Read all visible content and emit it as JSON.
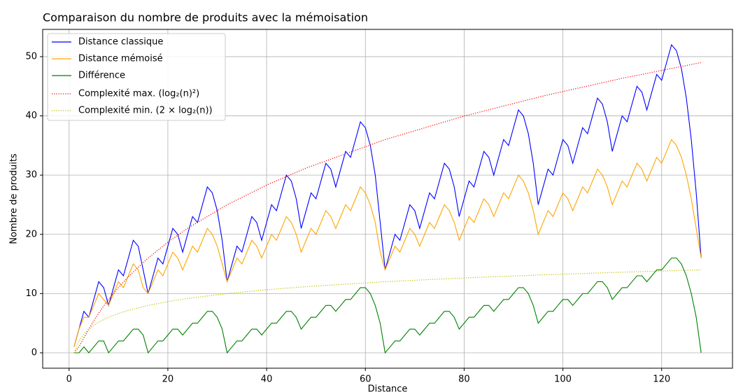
{
  "chart_data": {
    "type": "line",
    "title": "Comparaison du nombre de produits avec la mémoisation",
    "x_label": "Distance",
    "y_label": "Nombre de produits",
    "xlim": [
      -5.35,
      134.35
    ],
    "ylim": [
      -2.6,
      54.6
    ],
    "xticks": [
      0,
      20,
      40,
      60,
      80,
      100,
      120
    ],
    "yticks": [
      0,
      10,
      20,
      30,
      40,
      50
    ],
    "grid": true,
    "legend": "upper left",
    "x": [
      1,
      2,
      3,
      4,
      5,
      6,
      7,
      8,
      9,
      10,
      11,
      12,
      13,
      14,
      15,
      16,
      17,
      18,
      19,
      20,
      21,
      22,
      23,
      24,
      25,
      26,
      27,
      28,
      29,
      30,
      31,
      32,
      33,
      34,
      35,
      36,
      37,
      38,
      39,
      40,
      41,
      42,
      43,
      44,
      45,
      46,
      47,
      48,
      49,
      50,
      51,
      52,
      53,
      54,
      55,
      56,
      57,
      58,
      59,
      60,
      61,
      62,
      63,
      64,
      65,
      66,
      67,
      68,
      69,
      70,
      71,
      72,
      73,
      74,
      75,
      76,
      77,
      78,
      79,
      80,
      81,
      82,
      83,
      84,
      85,
      86,
      87,
      88,
      89,
      90,
      91,
      92,
      93,
      94,
      95,
      96,
      97,
      98,
      99,
      100,
      101,
      102,
      103,
      104,
      105,
      106,
      107,
      108,
      109,
      110,
      111,
      112,
      113,
      114,
      115,
      116,
      117,
      118,
      119,
      120,
      121,
      122,
      123,
      124,
      125,
      126,
      127,
      128
    ],
    "series": [
      {
        "name": "Distance classique",
        "color": "#0000ff",
        "style": "solid",
        "values": [
          1,
          4,
          7,
          6,
          9,
          12,
          11,
          8,
          11,
          14,
          13,
          16,
          19,
          18,
          14,
          10,
          13,
          16,
          15,
          18,
          21,
          20,
          17,
          20,
          23,
          22,
          25,
          28,
          27,
          24,
          19,
          12,
          15,
          18,
          17,
          20,
          23,
          22,
          19,
          22,
          25,
          24,
          27,
          30,
          29,
          26,
          21,
          24,
          27,
          26,
          29,
          32,
          31,
          28,
          31,
          34,
          33,
          36,
          39,
          38,
          35,
          30,
          22,
          14,
          17,
          20,
          19,
          22,
          25,
          24,
          21,
          24,
          27,
          26,
          29,
          32,
          31,
          28,
          23,
          26,
          29,
          28,
          31,
          34,
          33,
          30,
          33,
          36,
          35,
          38,
          41,
          40,
          37,
          32,
          25,
          28,
          31,
          30,
          33,
          36,
          35,
          32,
          35,
          38,
          37,
          40,
          43,
          42,
          39,
          34,
          37,
          40,
          39,
          42,
          45,
          44,
          41,
          44,
          47,
          46,
          49,
          52,
          51,
          48,
          43,
          36,
          27,
          16
        ]
      },
      {
        "name": "Distance mémoisé",
        "color": "#ffa500",
        "style": "solid",
        "values": [
          1,
          4,
          6,
          6,
          8,
          10,
          9,
          8,
          10,
          12,
          11,
          13,
          15,
          14,
          11,
          10,
          12,
          14,
          13,
          15,
          17,
          16,
          14,
          16,
          18,
          17,
          19,
          21,
          20,
          18,
          15,
          12,
          14,
          16,
          15,
          17,
          19,
          18,
          16,
          18,
          20,
          19,
          21,
          23,
          22,
          20,
          17,
          19,
          21,
          20,
          22,
          24,
          23,
          21,
          23,
          25,
          24,
          26,
          28,
          27,
          25,
          22,
          17,
          14,
          16,
          18,
          17,
          19,
          21,
          20,
          18,
          20,
          22,
          21,
          23,
          25,
          24,
          22,
          19,
          21,
          23,
          22,
          24,
          26,
          25,
          23,
          25,
          27,
          26,
          28,
          30,
          29,
          27,
          24,
          20,
          22,
          24,
          23,
          25,
          27,
          26,
          24,
          26,
          28,
          27,
          29,
          31,
          30,
          28,
          25,
          27,
          29,
          28,
          30,
          32,
          31,
          29,
          31,
          33,
          32,
          34,
          36,
          35,
          33,
          30,
          26,
          21,
          16
        ]
      },
      {
        "name": "Différence",
        "color": "#008000",
        "style": "solid",
        "values": [
          0,
          0,
          1,
          0,
          1,
          2,
          2,
          0,
          1,
          2,
          2,
          3,
          4,
          4,
          3,
          0,
          1,
          2,
          2,
          3,
          4,
          4,
          3,
          4,
          5,
          5,
          6,
          7,
          7,
          6,
          4,
          0,
          1,
          2,
          2,
          3,
          4,
          4,
          3,
          4,
          5,
          5,
          6,
          7,
          7,
          6,
          4,
          5,
          6,
          6,
          7,
          8,
          8,
          7,
          8,
          9,
          9,
          10,
          11,
          11,
          10,
          8,
          5,
          0,
          1,
          2,
          2,
          3,
          4,
          4,
          3,
          4,
          5,
          5,
          6,
          7,
          7,
          6,
          4,
          5,
          6,
          6,
          7,
          8,
          8,
          7,
          8,
          9,
          9,
          10,
          11,
          11,
          10,
          8,
          5,
          6,
          7,
          7,
          8,
          9,
          9,
          8,
          9,
          10,
          10,
          11,
          12,
          12,
          11,
          9,
          10,
          11,
          11,
          12,
          13,
          13,
          12,
          13,
          14,
          14,
          15,
          16,
          16,
          15,
          13,
          10,
          6,
          0
        ]
      },
      {
        "name": "Complexité max. (log₂(n)²)",
        "color": "#ff0000",
        "style": "dotted",
        "x": [
          1,
          2,
          3,
          4,
          5,
          6,
          7,
          8,
          10,
          12,
          16,
          20,
          24,
          32,
          40,
          48,
          64,
          80,
          96,
          112,
          128
        ],
        "values": [
          0,
          1,
          2.51,
          4,
          5.39,
          6.68,
          7.88,
          9,
          11.04,
          12.85,
          16,
          18.68,
          21.02,
          25,
          28.32,
          31.19,
          36,
          39.97,
          43.36,
          46.34,
          49
        ]
      },
      {
        "name": "Complexité min. (2 × log₂(n))",
        "color": "#bfbf00",
        "style": "dotted",
        "x": [
          1,
          2,
          3,
          4,
          5,
          6,
          7,
          8,
          10,
          12,
          16,
          20,
          24,
          32,
          40,
          48,
          64,
          80,
          96,
          112,
          128
        ],
        "values": [
          0,
          2,
          3.17,
          4,
          4.64,
          5.17,
          5.61,
          6,
          6.64,
          7.17,
          8,
          8.64,
          9.17,
          10,
          10.64,
          11.17,
          12,
          12.64,
          13.17,
          13.61,
          14
        ]
      }
    ]
  }
}
